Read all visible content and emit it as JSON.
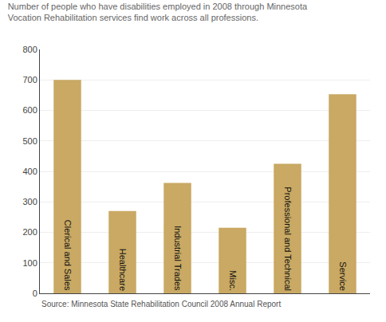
{
  "chart_data": {
    "type": "bar",
    "title": "Number of people who have disabilities employed in 2008 through Minnesota\nVocation Rehabilitation services find work across all professions.",
    "categories": [
      "Clerical and Sales",
      "Healthcare",
      "Industrial Trades",
      "Misc.",
      "Professional and Technical",
      "Service"
    ],
    "values": [
      700,
      270,
      362,
      215,
      425,
      653
    ],
    "color": "#C9A963",
    "ylim": [
      0,
      800
    ],
    "yticks": [
      0,
      100,
      200,
      300,
      400,
      500,
      600,
      700,
      800
    ],
    "grid": true,
    "tick_labels": "y",
    "annotations": [
      "Source: Minnesota State Rehabilitation Council 2008 Annual Report"
    ]
  }
}
